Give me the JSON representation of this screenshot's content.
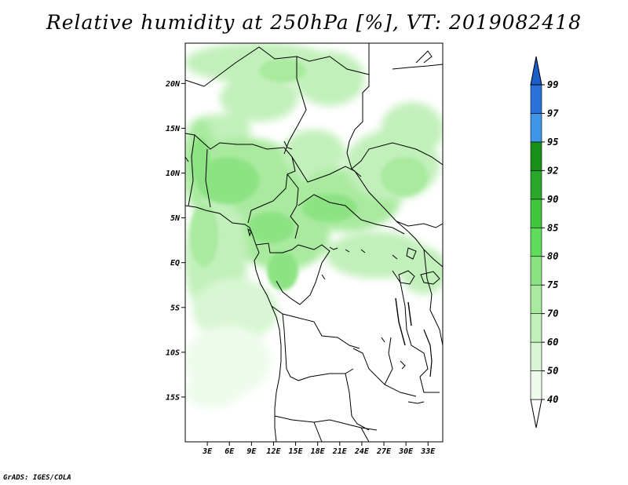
{
  "title": "Relative humidity at 250hPa [%], VT: 2019082418",
  "credit": "GrADS: IGES/COLA",
  "map": {
    "lat_labels": [
      "20N",
      "15N",
      "10N",
      "5N",
      "EQ",
      "5S",
      "10S",
      "15S"
    ],
    "lon_labels": [
      "3E",
      "6E",
      "9E",
      "12E",
      "15E",
      "18E",
      "21E",
      "24E",
      "27E",
      "30E",
      "33E"
    ],
    "lat_range": [
      -20,
      24.5
    ],
    "lon_range": [
      0,
      35
    ],
    "border_color": "#000000"
  },
  "colorbar": {
    "levels": [
      "99",
      "97",
      "95",
      "92",
      "90",
      "85",
      "80",
      "75",
      "70",
      "60",
      "50",
      "40"
    ],
    "bins": [
      {
        "from": "40",
        "to": "50",
        "color": "#eefbec"
      },
      {
        "from": "50",
        "to": "60",
        "color": "#d8f6d3"
      },
      {
        "from": "60",
        "to": "70",
        "color": "#c2f0bb"
      },
      {
        "from": "70",
        "to": "75",
        "color": "#a9ea9f"
      },
      {
        "from": "75",
        "to": "80",
        "color": "#8de383"
      },
      {
        "from": "80",
        "to": "85",
        "color": "#5fdc5a"
      },
      {
        "from": "85",
        "to": "90",
        "color": "#3fc63d"
      },
      {
        "from": "90",
        "to": "92",
        "color": "#2aa82a"
      },
      {
        "from": "92",
        "to": "95",
        "color": "#189018"
      },
      {
        "from": "95",
        "to": "97",
        "color": "#3f96e8"
      },
      {
        "from": "97",
        "to": "99",
        "color": "#2a72d8"
      },
      {
        "from": "99",
        "to": "",
        "color": "#1a5ec8"
      }
    ],
    "low_cap_color": "#ffffff"
  }
}
